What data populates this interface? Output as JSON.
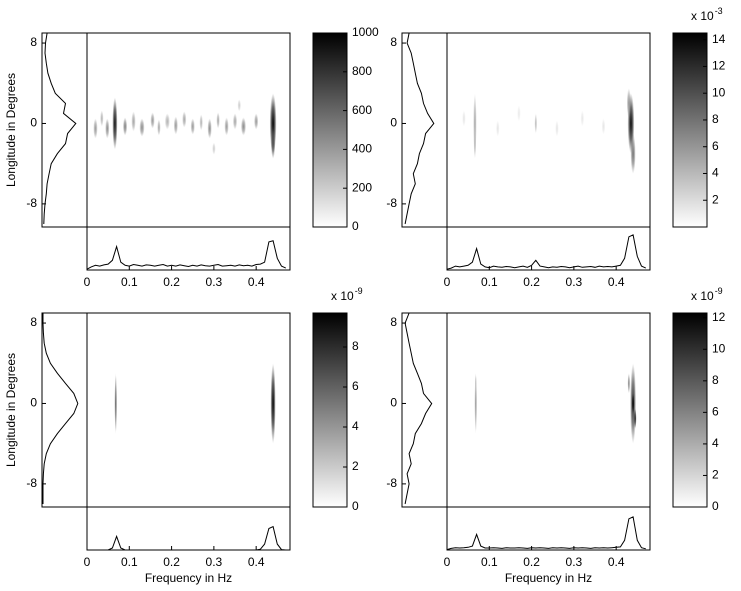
{
  "chart_data": [
    {
      "type": "heatmap",
      "colormap": "gray",
      "ylabel": "Longitude in Degrees",
      "xlim": [
        0,
        0.48
      ],
      "xticks": [
        0,
        0.1,
        0.2,
        0.3,
        0.4
      ],
      "ylim": [
        -10.3,
        9
      ],
      "yticks": [
        8,
        0,
        -8
      ],
      "clim": [
        0,
        1000
      ],
      "cticks": [
        0,
        200,
        400,
        600,
        800,
        1000
      ],
      "profile_lim": [
        0,
        1
      ],
      "blobs": [
        [
          0.066,
          0,
          0.006,
          2.6,
          950
        ],
        [
          0.44,
          0,
          0.008,
          3,
          1000
        ],
        [
          0.44,
          -2,
          0.005,
          1.5,
          700
        ],
        [
          0.02,
          -0.5,
          0.005,
          1,
          400
        ],
        [
          0.035,
          0.5,
          0.004,
          0.8,
          300
        ],
        [
          0.048,
          -0.5,
          0.005,
          1,
          450
        ],
        [
          0.09,
          -0.3,
          0.005,
          0.9,
          500
        ],
        [
          0.11,
          0.2,
          0.005,
          1,
          350
        ],
        [
          0.13,
          -0.4,
          0.006,
          0.9,
          450
        ],
        [
          0.155,
          0.3,
          0.005,
          0.8,
          400
        ],
        [
          0.17,
          -0.4,
          0.004,
          0.8,
          350
        ],
        [
          0.19,
          0.2,
          0.006,
          0.8,
          300
        ],
        [
          0.21,
          -0.2,
          0.005,
          0.9,
          400
        ],
        [
          0.23,
          0.4,
          0.005,
          0.8,
          350
        ],
        [
          0.25,
          -0.3,
          0.005,
          0.8,
          400
        ],
        [
          0.27,
          0.1,
          0.004,
          0.8,
          300
        ],
        [
          0.29,
          -0.5,
          0.005,
          1,
          450
        ],
        [
          0.31,
          0.3,
          0.004,
          0.8,
          350
        ],
        [
          0.33,
          -0.3,
          0.005,
          0.9,
          400
        ],
        [
          0.35,
          0.2,
          0.005,
          0.8,
          350
        ],
        [
          0.37,
          -0.3,
          0.006,
          0.9,
          450
        ],
        [
          0.4,
          0.2,
          0.005,
          0.8,
          400
        ],
        [
          0.3,
          -2.5,
          0.004,
          0.6,
          200
        ],
        [
          0.36,
          1.8,
          0.004,
          0.6,
          200
        ]
      ],
      "freq_profile": {
        "x": [
          0,
          0.01,
          0.02,
          0.03,
          0.04,
          0.05,
          0.06,
          0.07,
          0.08,
          0.09,
          0.1,
          0.11,
          0.12,
          0.13,
          0.14,
          0.15,
          0.16,
          0.17,
          0.18,
          0.19,
          0.2,
          0.21,
          0.22,
          0.23,
          0.24,
          0.25,
          0.26,
          0.27,
          0.28,
          0.29,
          0.3,
          0.31,
          0.32,
          0.33,
          0.34,
          0.35,
          0.36,
          0.37,
          0.38,
          0.39,
          0.4,
          0.41,
          0.42,
          0.43,
          0.44,
          0.45,
          0.46,
          0.47
        ],
        "values": [
          0.02,
          0.08,
          0.12,
          0.1,
          0.13,
          0.15,
          0.25,
          0.6,
          0.2,
          0.12,
          0.1,
          0.14,
          0.12,
          0.1,
          0.13,
          0.12,
          0.1,
          0.12,
          0.14,
          0.1,
          0.12,
          0.1,
          0.13,
          0.11,
          0.09,
          0.12,
          0.1,
          0.13,
          0.11,
          0.1,
          0.12,
          0.14,
          0.1,
          0.11,
          0.12,
          0.1,
          0.13,
          0.11,
          0.12,
          0.1,
          0.14,
          0.15,
          0.2,
          0.72,
          0.75,
          0.3,
          0.1,
          0.05
        ]
      },
      "lon_profile": {
        "y": [
          -10,
          -9,
          -8,
          -7,
          -6,
          -5,
          -4,
          -3,
          -2,
          -1,
          0,
          1,
          2,
          3,
          4,
          5,
          6,
          7,
          8,
          9
        ],
        "values": [
          0.02,
          0.03,
          0.05,
          0.08,
          0.1,
          0.15,
          0.2,
          0.35,
          0.55,
          0.6,
          0.8,
          0.5,
          0.55,
          0.3,
          0.2,
          0.12,
          0.08,
          0.05,
          0.06,
          0.1
        ]
      }
    },
    {
      "type": "heatmap",
      "colormap": "gray",
      "xlim": [
        0,
        0.48
      ],
      "xticks": [
        0,
        0.1,
        0.2,
        0.3,
        0.4
      ],
      "ylim": [
        -10.3,
        9
      ],
      "yticks": [
        8,
        0,
        -8
      ],
      "clim": [
        0,
        14.5
      ],
      "cticks": [
        2,
        4,
        6,
        8,
        10,
        12,
        14
      ],
      "colorbar_scale": {
        "text": "x 10",
        "exponent": "-3"
      },
      "profile_lim": [
        0,
        1
      ],
      "blobs": [
        [
          0.066,
          0,
          0.004,
          3,
          5
        ],
        [
          0.066,
          -2,
          0.003,
          1.5,
          4
        ],
        [
          0.435,
          0,
          0.008,
          3,
          14
        ],
        [
          0.44,
          -3,
          0.006,
          2,
          8
        ],
        [
          0.43,
          2,
          0.005,
          1.5,
          6
        ],
        [
          0.21,
          0,
          0.003,
          1,
          4
        ],
        [
          0.04,
          0.5,
          0.004,
          0.8,
          1.5
        ],
        [
          0.12,
          -0.5,
          0.004,
          0.8,
          1.5
        ],
        [
          0.17,
          1,
          0.004,
          0.8,
          1.2
        ],
        [
          0.26,
          -0.5,
          0.004,
          0.8,
          1.5
        ],
        [
          0.32,
          0.5,
          0.004,
          0.8,
          1.3
        ],
        [
          0.37,
          -0.3,
          0.004,
          0.8,
          1.5
        ]
      ],
      "freq_profile": {
        "x": [
          0,
          0.01,
          0.02,
          0.03,
          0.04,
          0.05,
          0.06,
          0.07,
          0.08,
          0.09,
          0.1,
          0.11,
          0.12,
          0.13,
          0.14,
          0.15,
          0.16,
          0.17,
          0.18,
          0.19,
          0.2,
          0.21,
          0.22,
          0.23,
          0.24,
          0.25,
          0.26,
          0.27,
          0.28,
          0.29,
          0.3,
          0.31,
          0.32,
          0.33,
          0.34,
          0.35,
          0.36,
          0.37,
          0.38,
          0.39,
          0.4,
          0.41,
          0.42,
          0.43,
          0.44,
          0.45,
          0.46,
          0.47
        ],
        "values": [
          0.02,
          0.05,
          0.1,
          0.08,
          0.1,
          0.12,
          0.2,
          0.55,
          0.15,
          0.08,
          0.06,
          0.1,
          0.08,
          0.07,
          0.09,
          0.08,
          0.06,
          0.08,
          0.1,
          0.07,
          0.12,
          0.25,
          0.1,
          0.08,
          0.06,
          0.08,
          0.07,
          0.09,
          0.08,
          0.06,
          0.08,
          0.1,
          0.07,
          0.08,
          0.09,
          0.07,
          0.1,
          0.08,
          0.09,
          0.08,
          0.1,
          0.12,
          0.3,
          0.85,
          0.9,
          0.35,
          0.1,
          0.05
        ]
      },
      "lon_profile": {
        "y": [
          -10,
          -9,
          -8,
          -7,
          -6,
          -5,
          -4,
          -3,
          -2,
          -1,
          0,
          1,
          2,
          3,
          4,
          5,
          6,
          7,
          8,
          9
        ],
        "values": [
          0.05,
          0.1,
          0.15,
          0.2,
          0.3,
          0.25,
          0.35,
          0.4,
          0.5,
          0.55,
          0.75,
          0.6,
          0.5,
          0.45,
          0.35,
          0.3,
          0.25,
          0.2,
          0.1,
          0.15
        ]
      }
    },
    {
      "type": "heatmap",
      "colormap": "gray",
      "ylabel": "Longitude in Degrees",
      "xlabel": "Frequency in Hz",
      "xlim": [
        0,
        0.48
      ],
      "xticks": [
        0,
        0.1,
        0.2,
        0.3,
        0.4
      ],
      "ylim": [
        -10.3,
        9
      ],
      "yticks": [
        8,
        0,
        -8
      ],
      "clim": [
        0,
        9.7
      ],
      "cticks": [
        0,
        2,
        4,
        6,
        8
      ],
      "colorbar_scale": {
        "text": "x 10",
        "exponent": "-9"
      },
      "profile_lim": [
        0,
        1
      ],
      "blobs": [
        [
          0.068,
          0,
          0.003,
          3,
          6
        ],
        [
          0.44,
          0,
          0.006,
          4,
          9.7
        ]
      ],
      "freq_profile": {
        "x": [
          0,
          0.01,
          0.02,
          0.03,
          0.04,
          0.05,
          0.06,
          0.07,
          0.08,
          0.09,
          0.1,
          0.11,
          0.12,
          0.13,
          0.14,
          0.15,
          0.16,
          0.17,
          0.18,
          0.19,
          0.2,
          0.21,
          0.22,
          0.23,
          0.24,
          0.25,
          0.26,
          0.27,
          0.28,
          0.29,
          0.3,
          0.31,
          0.32,
          0.33,
          0.34,
          0.35,
          0.36,
          0.37,
          0.38,
          0.39,
          0.4,
          0.41,
          0.42,
          0.43,
          0.44,
          0.45,
          0.46,
          0.47
        ],
        "values": [
          0,
          0,
          0,
          0,
          0,
          0,
          0.05,
          0.35,
          0.05,
          0,
          0,
          0,
          0,
          0,
          0,
          0,
          0,
          0,
          0,
          0,
          0,
          0,
          0,
          0,
          0,
          0,
          0,
          0,
          0,
          0,
          0,
          0,
          0,
          0,
          0,
          0,
          0,
          0,
          0,
          0,
          0,
          0.02,
          0.15,
          0.55,
          0.6,
          0.15,
          0.01,
          0
        ]
      },
      "lon_profile": {
        "y": [
          -10,
          -9,
          -8,
          -7,
          -6,
          -5,
          -4,
          -3,
          -2,
          -1,
          0,
          1,
          2,
          3,
          4,
          5,
          6,
          7,
          8,
          9
        ],
        "values": [
          0,
          0,
          0,
          0.01,
          0.03,
          0.08,
          0.18,
          0.35,
          0.55,
          0.75,
          0.85,
          0.75,
          0.55,
          0.35,
          0.18,
          0.08,
          0.03,
          0.01,
          0,
          0
        ]
      }
    },
    {
      "type": "heatmap",
      "colormap": "gray",
      "xlabel": "Frequency in Hz",
      "xlim": [
        0,
        0.48
      ],
      "xticks": [
        0,
        0.1,
        0.2,
        0.3,
        0.4
      ],
      "ylim": [
        -10.3,
        9
      ],
      "yticks": [
        8,
        0,
        -8
      ],
      "clim": [
        0,
        12.3
      ],
      "cticks": [
        0,
        2,
        4,
        6,
        8,
        10,
        12
      ],
      "colorbar_scale": {
        "text": "x 10",
        "exponent": "-9"
      },
      "profile_lim": [
        0,
        1
      ],
      "blobs": [
        [
          0.068,
          0,
          0.003,
          3,
          5
        ],
        [
          0.068,
          2,
          0.002,
          1,
          3
        ],
        [
          0.44,
          0,
          0.007,
          4,
          10
        ],
        [
          0.44,
          0,
          0.003,
          1,
          12
        ],
        [
          0.445,
          -1.5,
          0.003,
          1,
          11
        ],
        [
          0.43,
          2,
          0.003,
          1,
          6
        ]
      ],
      "freq_profile": {
        "x": [
          0,
          0.01,
          0.02,
          0.03,
          0.04,
          0.05,
          0.06,
          0.07,
          0.08,
          0.09,
          0.1,
          0.11,
          0.12,
          0.13,
          0.14,
          0.15,
          0.16,
          0.17,
          0.18,
          0.19,
          0.2,
          0.21,
          0.22,
          0.23,
          0.24,
          0.25,
          0.26,
          0.27,
          0.28,
          0.29,
          0.3,
          0.31,
          0.32,
          0.33,
          0.34,
          0.35,
          0.36,
          0.37,
          0.38,
          0.39,
          0.4,
          0.41,
          0.42,
          0.43,
          0.44,
          0.45,
          0.46,
          0.47
        ],
        "values": [
          0.01,
          0.04,
          0.06,
          0.05,
          0.06,
          0.07,
          0.1,
          0.4,
          0.1,
          0.05,
          0.05,
          0.06,
          0.05,
          0.04,
          0.06,
          0.05,
          0.05,
          0.06,
          0.05,
          0.04,
          0.06,
          0.05,
          0.06,
          0.05,
          0.04,
          0.06,
          0.05,
          0.06,
          0.05,
          0.04,
          0.06,
          0.05,
          0.06,
          0.05,
          0.04,
          0.06,
          0.05,
          0.06,
          0.05,
          0.06,
          0.07,
          0.08,
          0.25,
          0.8,
          0.85,
          0.25,
          0.06,
          0.03
        ]
      },
      "lon_profile": {
        "y": [
          -10,
          -9,
          -8,
          -7,
          -6,
          -5,
          -4,
          -3,
          -2,
          -1,
          0,
          1,
          2,
          3,
          4,
          5,
          6,
          7,
          8,
          9
        ],
        "values": [
          0.05,
          0.1,
          0.15,
          0.1,
          0.2,
          0.15,
          0.25,
          0.3,
          0.45,
          0.55,
          0.7,
          0.5,
          0.45,
          0.35,
          0.25,
          0.2,
          0.15,
          0.1,
          0.05,
          0.15
        ]
      }
    }
  ]
}
